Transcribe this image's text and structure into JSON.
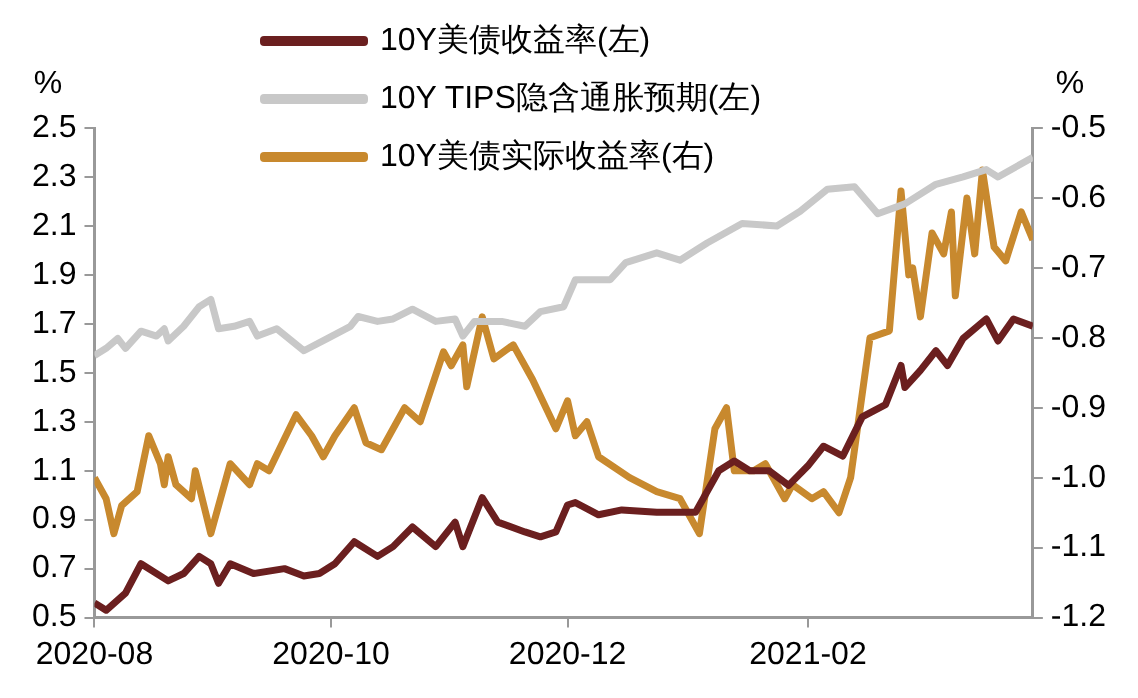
{
  "chart_data": {
    "type": "line",
    "ylabel": "%",
    "y2label": "%",
    "legend": "top",
    "xlim": [
      "2020-08-01",
      "2021-03-31"
    ],
    "xticks": [
      "2020-08",
      "2020-10",
      "2020-12",
      "2021-02"
    ],
    "ylim": [
      0.5,
      2.5
    ],
    "yticks": [
      0.5,
      0.7,
      0.9,
      1.1,
      1.3,
      1.5,
      1.7,
      1.9,
      2.1,
      2.3,
      2.5
    ],
    "y2lim": [
      -1.2,
      -0.5
    ],
    "y2ticks": [
      -1.2,
      -1.1,
      {
        "value": -1,
        "label": "-1.0"
      },
      -0.9,
      -0.8,
      -0.7,
      -0.6,
      -0.5
    ],
    "grid": false,
    "marker": "none",
    "line_style": "solid",
    "series": [
      {
        "name": "10Y美债收益率(左)",
        "color": "#6b1f1f",
        "x": [
          "2020-08-01",
          "2020-08-04",
          "2020-08-09",
          "2020-08-13",
          "2020-08-20",
          "2020-08-24",
          "2020-08-28",
          "2020-08-31",
          "2020-09-02",
          "2020-09-05",
          "2020-09-11",
          "2020-09-19",
          "2020-09-24",
          "2020-09-28",
          "2020-10-02",
          "2020-10-07",
          "2020-10-13",
          "2020-10-17",
          "2020-10-22",
          "2020-10-28",
          "2020-11-02",
          "2020-11-04",
          "2020-11-09",
          "2020-11-13",
          "2020-11-20",
          "2020-11-24",
          "2020-11-28",
          "2020-12-01",
          "2020-12-03",
          "2020-12-09",
          "2020-12-15",
          "2020-12-24",
          "2021-01-03",
          "2021-01-09",
          "2021-01-13",
          "2021-01-17",
          "2021-01-22",
          "2021-01-27",
          "2021-02-01",
          "2021-02-05",
          "2021-02-10",
          "2021-02-15",
          "2021-02-21",
          "2021-02-25",
          "2021-02-26",
          "2021-03-02",
          "2021-03-06",
          "2021-03-09",
          "2021-03-13",
          "2021-03-19",
          "2021-03-22",
          "2021-03-26",
          "2021-03-31"
        ],
        "values": [
          0.56,
          0.53,
          0.6,
          0.72,
          0.65,
          0.68,
          0.75,
          0.72,
          0.64,
          0.72,
          0.68,
          0.7,
          0.67,
          0.68,
          0.72,
          0.81,
          0.75,
          0.79,
          0.87,
          0.79,
          0.89,
          0.79,
          0.99,
          0.89,
          0.85,
          0.83,
          0.85,
          0.96,
          0.97,
          0.92,
          0.94,
          0.93,
          0.93,
          1.1,
          1.14,
          1.1,
          1.1,
          1.04,
          1.12,
          1.2,
          1.16,
          1.32,
          1.37,
          1.53,
          1.44,
          1.51,
          1.59,
          1.53,
          1.64,
          1.72,
          1.63,
          1.72,
          1.69
        ]
      },
      {
        "name": "10Y TIPS隐含通胀预期(左)",
        "color": "#c8c8c8",
        "x": [
          "2020-08-01",
          "2020-08-04",
          "2020-08-07",
          "2020-08-09",
          "2020-08-13",
          "2020-08-17",
          "2020-08-19",
          "2020-08-20",
          "2020-08-24",
          "2020-08-28",
          "2020-08-31",
          "2020-09-02",
          "2020-09-06",
          "2020-09-10",
          "2020-09-12",
          "2020-09-17",
          "2020-09-24",
          "2020-09-30",
          "2020-10-06",
          "2020-10-08",
          "2020-10-13",
          "2020-10-17",
          "2020-10-22",
          "2020-10-28",
          "2020-11-02",
          "2020-11-04",
          "2020-11-07",
          "2020-11-14",
          "2020-11-20",
          "2020-11-24",
          "2020-11-30",
          "2020-12-03",
          "2020-12-05",
          "2020-12-12",
          "2020-12-16",
          "2020-12-24",
          "2020-12-30",
          "2021-01-06",
          "2021-01-15",
          "2021-01-24",
          "2021-01-30",
          "2021-02-06",
          "2021-02-13",
          "2021-02-19",
          "2021-02-26",
          "2021-03-06",
          "2021-03-13",
          "2021-03-19",
          "2021-03-22",
          "2021-03-31"
        ],
        "values": [
          1.57,
          1.6,
          1.64,
          1.6,
          1.67,
          1.65,
          1.68,
          1.63,
          1.69,
          1.77,
          1.8,
          1.68,
          1.69,
          1.71,
          1.65,
          1.68,
          1.59,
          1.64,
          1.69,
          1.73,
          1.71,
          1.72,
          1.76,
          1.71,
          1.72,
          1.65,
          1.71,
          1.71,
          1.69,
          1.75,
          1.77,
          1.88,
          1.88,
          1.88,
          1.95,
          1.99,
          1.96,
          2.03,
          2.11,
          2.1,
          2.16,
          2.25,
          2.26,
          2.15,
          2.19,
          2.27,
          2.3,
          2.33,
          2.3,
          2.38
        ]
      },
      {
        "name": "10Y美债实际收益率(右)",
        "color": "#c8892e",
        "axis": "y2",
        "x": [
          "2020-08-01",
          "2020-08-04",
          "2020-08-06",
          "2020-08-08",
          "2020-08-12",
          "2020-08-15",
          "2020-08-18",
          "2020-08-19",
          "2020-08-20",
          "2020-08-22",
          "2020-08-26",
          "2020-08-27",
          "2020-08-31",
          "2020-09-01",
          "2020-09-05",
          "2020-09-10",
          "2020-09-12",
          "2020-09-15",
          "2020-09-22",
          "2020-09-26",
          "2020-09-29",
          "2020-10-02",
          "2020-10-07",
          "2020-10-10",
          "2020-10-14",
          "2020-10-20",
          "2020-10-24",
          "2020-10-30",
          "2020-11-01",
          "2020-11-04",
          "2020-11-05",
          "2020-11-09",
          "2020-11-12",
          "2020-11-17",
          "2020-11-22",
          "2020-11-28",
          "2020-12-01",
          "2020-12-03",
          "2020-12-06",
          "2020-12-09",
          "2020-12-17",
          "2020-12-24",
          "2020-12-30",
          "2021-01-04",
          "2021-01-08",
          "2021-01-11",
          "2021-01-13",
          "2021-01-18",
          "2021-01-21",
          "2021-01-26",
          "2021-01-28",
          "2021-02-02",
          "2021-02-05",
          "2021-02-09",
          "2021-02-12",
          "2021-02-17",
          "2021-02-22",
          "2021-02-25",
          "2021-02-27",
          "2021-02-28",
          "2021-03-02",
          "2021-03-05",
          "2021-03-08",
          "2021-03-10",
          "2021-03-11",
          "2021-03-14",
          "2021-03-16",
          "2021-03-18",
          "2021-03-21",
          "2021-03-24",
          "2021-03-28",
          "2021-03-31"
        ],
        "values": [
          -1.0,
          -1.03,
          -1.08,
          -1.04,
          -1.02,
          -0.94,
          -0.98,
          -1.01,
          -0.97,
          -1.01,
          -1.03,
          -0.99,
          -1.08,
          -1.06,
          -0.98,
          -1.01,
          -0.98,
          -0.99,
          -0.91,
          -0.94,
          -0.97,
          -0.94,
          -0.9,
          -0.95,
          -0.96,
          -0.9,
          -0.92,
          -0.82,
          -0.84,
          -0.81,
          -0.87,
          -0.77,
          -0.83,
          -0.81,
          -0.86,
          -0.93,
          -0.89,
          -0.94,
          -0.92,
          -0.97,
          -1.0,
          -1.02,
          -1.03,
          -1.08,
          -0.93,
          -0.9,
          -0.99,
          -0.99,
          -0.98,
          -1.03,
          -1.01,
          -1.03,
          -1.02,
          -1.05,
          -1.0,
          -0.8,
          -0.79,
          -0.59,
          -0.71,
          -0.7,
          -0.77,
          -0.65,
          -0.68,
          -0.62,
          -0.74,
          -0.6,
          -0.68,
          -0.56,
          -0.67,
          -0.69,
          -0.62,
          -0.66
        ]
      }
    ]
  }
}
